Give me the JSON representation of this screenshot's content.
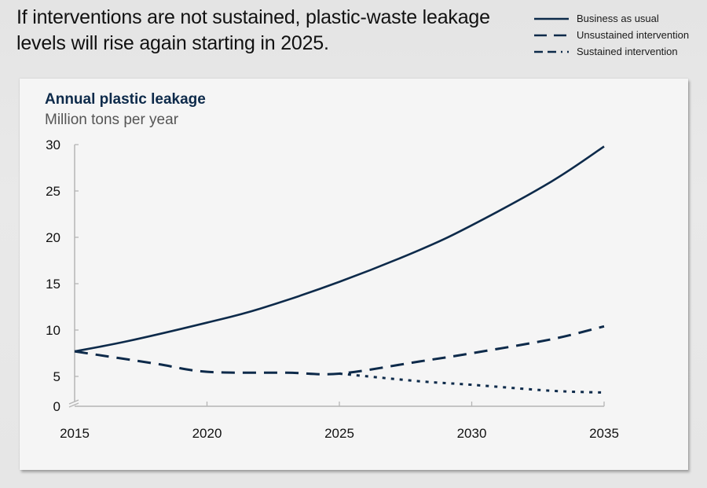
{
  "headline": "If interventions are not sustained, plastic-waste leakage levels will rise again starting in 2025.",
  "legend": [
    {
      "label": "Business as usual",
      "style": "solid"
    },
    {
      "label": "Unsustained intervention",
      "style": "dashed"
    },
    {
      "label": "Sustained intervention",
      "style": "dash-dot"
    }
  ],
  "colors": {
    "line": "#0d2a4a",
    "axis": "#b5b5b5",
    "panel": "#f5f5f5"
  },
  "chart_data": {
    "type": "line",
    "title": "Annual plastic leakage",
    "subtitle": "Million tons per year",
    "xlabel": "",
    "ylabel": "Million tons per year",
    "x": [
      2015,
      2020,
      2025,
      2030,
      2035
    ],
    "x_ticks": [
      "2015",
      "2020",
      "2025",
      "2030",
      "2035"
    ],
    "y_ticks": [
      "0",
      "5",
      "10",
      "15",
      "20",
      "25",
      "30"
    ],
    "ylim": [
      0,
      30
    ],
    "y_axis_break": true,
    "grid": false,
    "legend_position": "top-right",
    "series": [
      {
        "name": "Business as usual",
        "style": "solid",
        "x": [
          2015,
          2017,
          2020,
          2022,
          2025,
          2028,
          2030,
          2033,
          2035
        ],
        "values": [
          7.7,
          8.8,
          10.8,
          12.3,
          15.2,
          18.6,
          21.3,
          26.0,
          29.8
        ]
      },
      {
        "name": "Unsustained intervention",
        "style": "dashed",
        "x": [
          2015,
          2018,
          2020,
          2023,
          2025,
          2028,
          2030,
          2033,
          2035
        ],
        "values": [
          7.7,
          6.4,
          5.5,
          5.4,
          5.3,
          6.6,
          7.5,
          9.0,
          10.4
        ]
      },
      {
        "name": "Sustained intervention",
        "style": "dash-dot",
        "x": [
          2015,
          2018,
          2020,
          2023,
          2025,
          2028,
          2030,
          2033,
          2035
        ],
        "values": [
          7.7,
          6.4,
          5.5,
          5.4,
          5.3,
          4.2,
          3.6,
          2.6,
          2.3
        ]
      }
    ]
  }
}
